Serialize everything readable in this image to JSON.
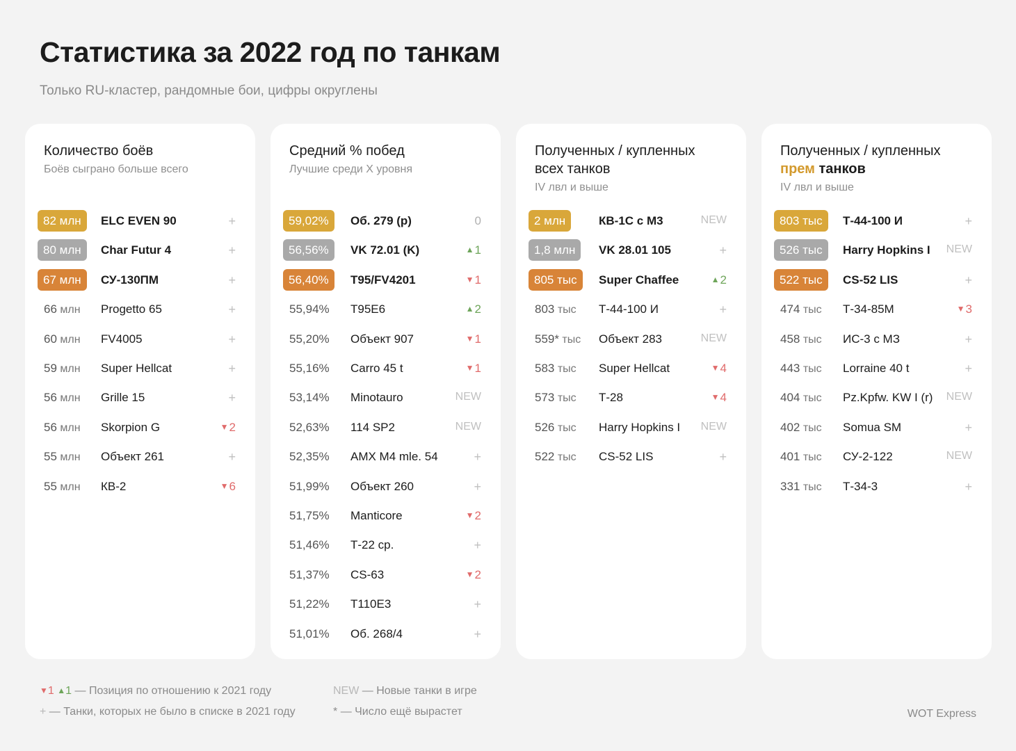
{
  "header": {
    "title": "Статистика за 2022 год по танкам",
    "subtitle": "Только RU-кластер, рандомные бои, цифры округлены"
  },
  "colors": {
    "gold": "#d9a73a",
    "silver": "#a9a9a9",
    "bronze": "#d88438",
    "down": "#e06b6b",
    "up": "#6ea55a"
  },
  "cards": [
    {
      "title": "Количество боёв",
      "title_accent": "",
      "title_rest": "",
      "subtitle": "Боёв сыграно больше всего",
      "rows": [
        {
          "value": "82 млн",
          "name": "ELC EVEN 90",
          "mark": "+",
          "kind": "plus",
          "rank": "gold"
        },
        {
          "value": "80 млн",
          "name": "Char Futur 4",
          "mark": "+",
          "kind": "plus",
          "rank": "silver"
        },
        {
          "value": "67 млн",
          "name": "СУ-130ПМ",
          "mark": "+",
          "kind": "plus",
          "rank": "bronze"
        },
        {
          "value": "66",
          "unit": "млн",
          "name": "Progetto 65",
          "mark": "+",
          "kind": "plus"
        },
        {
          "value": "60",
          "unit": "млн",
          "name": "FV4005",
          "mark": "+",
          "kind": "plus"
        },
        {
          "value": "59",
          "unit": "млн",
          "name": "Super Hellcat",
          "mark": "+",
          "kind": "plus"
        },
        {
          "value": "56",
          "unit": "млн",
          "name": "Grille 15",
          "mark": "+",
          "kind": "plus"
        },
        {
          "value": "56",
          "unit": "млн",
          "name": "Skorpion G",
          "mark": "2",
          "kind": "down"
        },
        {
          "value": "55",
          "unit": "млн",
          "name": "Объект 261",
          "mark": "+",
          "kind": "plus"
        },
        {
          "value": "55",
          "unit": "млн",
          "name": "КВ-2",
          "mark": "6",
          "kind": "down"
        }
      ]
    },
    {
      "title": "Средний % побед",
      "title_accent": "",
      "title_rest": "",
      "subtitle": "Лучшие среди X уровня",
      "rows": [
        {
          "value": "59,02%",
          "name": "Об. 279 (р)",
          "mark": "0",
          "kind": "zero",
          "rank": "gold"
        },
        {
          "value": "56,56%",
          "name": "VK 72.01 (K)",
          "mark": "1",
          "kind": "up",
          "rank": "silver"
        },
        {
          "value": "56,40%",
          "name": "T95/FV4201",
          "mark": "1",
          "kind": "down",
          "rank": "bronze"
        },
        {
          "value": "55,94%",
          "name": "T95E6",
          "mark": "2",
          "kind": "up"
        },
        {
          "value": "55,20%",
          "name": "Объект 907",
          "mark": "1",
          "kind": "down"
        },
        {
          "value": "55,16%",
          "name": "Carro 45 t",
          "mark": "1",
          "kind": "down"
        },
        {
          "value": "53,14%",
          "name": "Minotauro",
          "mark": "NEW",
          "kind": "new"
        },
        {
          "value": "52,63%",
          "name": "114 SP2",
          "mark": "NEW",
          "kind": "new"
        },
        {
          "value": "52,35%",
          "name": "AMX M4 mle. 54",
          "mark": "+",
          "kind": "plus"
        },
        {
          "value": "51,99%",
          "name": "Объект 260",
          "mark": "+",
          "kind": "plus"
        },
        {
          "value": "51,75%",
          "name": "Manticore",
          "mark": "2",
          "kind": "down"
        },
        {
          "value": "51,46%",
          "name": "Т-22 ср.",
          "mark": "+",
          "kind": "plus"
        },
        {
          "value": "51,37%",
          "name": "CS-63",
          "mark": "2",
          "kind": "down"
        },
        {
          "value": "51,22%",
          "name": "T110E3",
          "mark": "+",
          "kind": "plus"
        },
        {
          "value": "51,01%",
          "name": "Об. 268/4",
          "mark": "+",
          "kind": "plus"
        }
      ]
    },
    {
      "title": "Полученных / купленных всех танков",
      "title_accent": "",
      "title_rest": "",
      "subtitle": "IV лвл и выше",
      "rows": [
        {
          "value": "2 млн",
          "name": "КВ-1С с М3",
          "mark": "NEW",
          "kind": "new",
          "rank": "gold"
        },
        {
          "value": "1,8 млн",
          "name": "VK 28.01 105",
          "mark": "+",
          "kind": "plus",
          "rank": "silver"
        },
        {
          "value": "805 тыс",
          "name": "Super Chaffee",
          "mark": "2",
          "kind": "up",
          "rank": "bronze"
        },
        {
          "value": "803",
          "unit": "тыс",
          "name": "Т-44-100 И",
          "mark": "+",
          "kind": "plus"
        },
        {
          "value": "559*",
          "unit": "тыс",
          "name": "Объект 283",
          "mark": "NEW",
          "kind": "new"
        },
        {
          "value": "583",
          "unit": "тыс",
          "name": "Super Hellcat",
          "mark": "4",
          "kind": "down"
        },
        {
          "value": "573",
          "unit": "тыс",
          "name": "Т-28",
          "mark": "4",
          "kind": "down"
        },
        {
          "value": "526",
          "unit": "тыс",
          "name": "Harry Hopkins I",
          "mark": "NEW",
          "kind": "new"
        },
        {
          "value": "522",
          "unit": "тыс",
          "name": "CS-52 LIS",
          "mark": "+",
          "kind": "plus"
        }
      ]
    },
    {
      "title": "Полученных / купленных",
      "title_accent": "прем",
      "title_rest": "танков",
      "subtitle": "IV лвл и выше",
      "rows": [
        {
          "value": "803 тыс",
          "name": "Т-44-100 И",
          "mark": "+",
          "kind": "plus",
          "rank": "gold"
        },
        {
          "value": "526 тыс",
          "name": "Harry Hopkins I",
          "mark": "NEW",
          "kind": "new",
          "rank": "silver"
        },
        {
          "value": "522 тыс",
          "name": "CS-52 LIS",
          "mark": "+",
          "kind": "plus",
          "rank": "bronze"
        },
        {
          "value": "474",
          "unit": "тыс",
          "name": "Т-34-85М",
          "mark": "3",
          "kind": "down"
        },
        {
          "value": "458",
          "unit": "тыс",
          "name": "ИС-3 с МЗ",
          "mark": "+",
          "kind": "plus"
        },
        {
          "value": "443",
          "unit": "тыс",
          "name": "Lorraine 40 t",
          "mark": "+",
          "kind": "plus"
        },
        {
          "value": "404",
          "unit": "тыс",
          "name": "Pz.Kpfw. KW I (r)",
          "mark": "NEW",
          "kind": "new"
        },
        {
          "value": "402",
          "unit": "тыс",
          "name": "Somua SM",
          "mark": "+",
          "kind": "plus"
        },
        {
          "value": "401",
          "unit": "тыс",
          "name": "СУ-2-122",
          "mark": "NEW",
          "kind": "new"
        },
        {
          "value": "331",
          "unit": "тыс",
          "name": "Т-34-3",
          "mark": "+",
          "kind": "plus"
        }
      ]
    }
  ],
  "legend": {
    "position_down": "1",
    "position_up": "1",
    "position_text": "— Позиция по отношению к 2021 году",
    "plus_mark": "+",
    "plus_text": "— Танки, которых не было в списке в 2021 году",
    "new_mark": "NEW",
    "new_text": "— Новые танки в игре",
    "star_mark": "*",
    "star_text": "— Число ещё вырастет"
  },
  "brand": "WOT Express"
}
